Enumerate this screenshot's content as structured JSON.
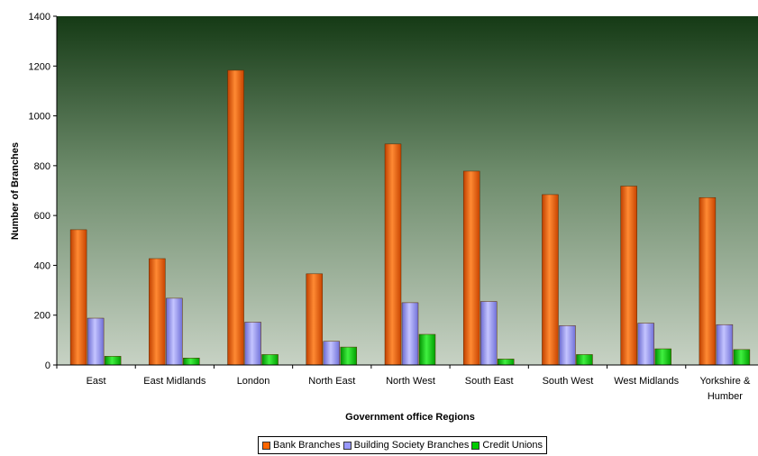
{
  "chart_data": {
    "type": "bar",
    "xlabel": "Government office Regions",
    "ylabel": "Number of Branches",
    "ylim": [
      0,
      1400
    ],
    "yticks": [
      0,
      200,
      400,
      600,
      800,
      1000,
      1200,
      1400
    ],
    "categories": [
      "East",
      "East Midlands",
      "London",
      "North East",
      "North West",
      "South East",
      "South West",
      "West Midlands",
      "Yorkshire & Humber"
    ],
    "series": [
      {
        "name": "Bank Branches",
        "color": "#ff6600",
        "values": [
          543,
          427,
          1183,
          366,
          887,
          778,
          684,
          718,
          672
        ]
      },
      {
        "name": "Building Society Branches",
        "color": "#9999ff",
        "values": [
          188,
          268,
          172,
          95,
          250,
          255,
          158,
          168,
          162
        ]
      },
      {
        "name": "Credit Unions",
        "color": "#00cc00",
        "values": [
          35,
          28,
          42,
          72,
          123,
          24,
          42,
          65,
          62
        ]
      }
    ],
    "legend_position": "bottom",
    "background": "gradient dark green to light grey-green",
    "grid": false
  }
}
